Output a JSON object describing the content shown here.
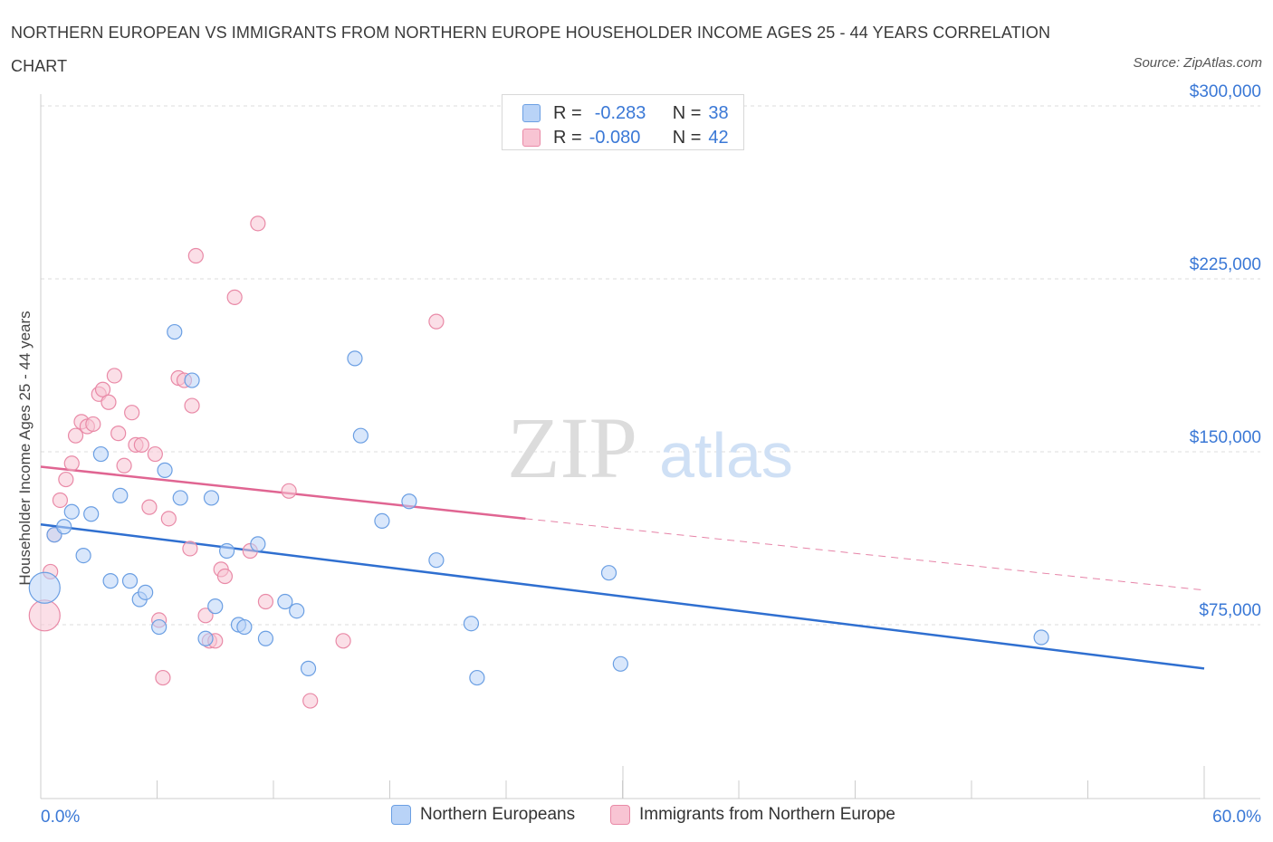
{
  "title": "NORTHERN EUROPEAN VS IMMIGRANTS FROM NORTHERN EUROPE HOUSEHOLDER INCOME AGES 25 - 44 YEARS CORRELATION CHART",
  "source": "Source: ZipAtlas.com",
  "watermark": {
    "zip": "ZIP",
    "atlas": "atlas"
  },
  "legend": {
    "rows": [
      {
        "r_label": "R =",
        "r_value": "-0.283",
        "n_label": "N =",
        "n_value": "38"
      },
      {
        "r_label": "R =",
        "r_value": "-0.080",
        "n_label": "N =",
        "n_value": "42"
      }
    ]
  },
  "bottom_legend": {
    "series1": "Northern Europeans",
    "series2": "Immigrants from Northern Europe"
  },
  "colors": {
    "blue_fill": "#b9d3f7",
    "blue_stroke": "#6b9fe3",
    "blue_line": "#2f6fd0",
    "pink_fill": "#f8c4d3",
    "pink_stroke": "#e98aa7",
    "pink_line": "#e06592",
    "grid": "#dddddd",
    "axis_text": "#3a78d6"
  },
  "chart_data": {
    "type": "scatter",
    "title": "NORTHERN EUROPEAN VS IMMIGRANTS FROM NORTHERN EUROPE HOUSEHOLDER INCOME AGES 25 - 44 YEARS CORRELATION CHART",
    "xlabel": "",
    "ylabel": "Householder Income Ages 25 - 44 years",
    "xlim": [
      0,
      60
    ],
    "ylim": [
      0,
      300000
    ],
    "x_tick_labels": [
      "0.0%",
      "60.0%"
    ],
    "y_ticks": [
      75000,
      150000,
      225000,
      300000
    ],
    "y_tick_labels": [
      "$75,000",
      "$150,000",
      "$225,000",
      "$300,000"
    ],
    "series": [
      {
        "name": "Northern Europeans",
        "color": "blue",
        "r": -0.283,
        "n": 38,
        "trend": {
          "x": [
            0,
            60
          ],
          "y": [
            118500,
            56000
          ],
          "dashed_x": null
        },
        "points": [
          {
            "x": 0.2,
            "y": 91000,
            "big": true
          },
          {
            "x": 0.7,
            "y": 114000
          },
          {
            "x": 1.2,
            "y": 117500
          },
          {
            "x": 1.6,
            "y": 124000
          },
          {
            "x": 2.2,
            "y": 105000
          },
          {
            "x": 2.6,
            "y": 123000
          },
          {
            "x": 3.1,
            "y": 149000
          },
          {
            "x": 3.6,
            "y": 94000
          },
          {
            "x": 4.1,
            "y": 131000
          },
          {
            "x": 4.6,
            "y": 94000
          },
          {
            "x": 5.1,
            "y": 86000
          },
          {
            "x": 5.4,
            "y": 89000
          },
          {
            "x": 6.1,
            "y": 74000
          },
          {
            "x": 6.4,
            "y": 142000
          },
          {
            "x": 6.9,
            "y": 202000
          },
          {
            "x": 7.2,
            "y": 130000
          },
          {
            "x": 7.8,
            "y": 181000
          },
          {
            "x": 8.5,
            "y": 69000
          },
          {
            "x": 8.8,
            "y": 130000
          },
          {
            "x": 9.0,
            "y": 83000
          },
          {
            "x": 9.6,
            "y": 107000
          },
          {
            "x": 10.2,
            "y": 75000
          },
          {
            "x": 10.5,
            "y": 74000
          },
          {
            "x": 11.2,
            "y": 110000
          },
          {
            "x": 11.6,
            "y": 69000
          },
          {
            "x": 12.6,
            "y": 85000
          },
          {
            "x": 13.2,
            "y": 81000
          },
          {
            "x": 13.8,
            "y": 56000
          },
          {
            "x": 16.2,
            "y": 190500
          },
          {
            "x": 16.5,
            "y": 157000
          },
          {
            "x": 17.6,
            "y": 120000
          },
          {
            "x": 19.0,
            "y": 128500
          },
          {
            "x": 20.4,
            "y": 103000
          },
          {
            "x": 22.2,
            "y": 75500
          },
          {
            "x": 22.5,
            "y": 52000
          },
          {
            "x": 29.3,
            "y": 97500
          },
          {
            "x": 29.9,
            "y": 58000
          },
          {
            "x": 51.6,
            "y": 69500
          }
        ]
      },
      {
        "name": "Immigrants from Northern Europe",
        "color": "pink",
        "r": -0.08,
        "n": 42,
        "trend": {
          "x": [
            0,
            25
          ],
          "y": [
            143500,
            121000
          ],
          "dashed_to_x": 60,
          "dashed_to_y": 90000
        },
        "points": [
          {
            "x": 0.2,
            "y": 79000,
            "big": true
          },
          {
            "x": 0.5,
            "y": 98000
          },
          {
            "x": 0.7,
            "y": 114000
          },
          {
            "x": 1.0,
            "y": 129000
          },
          {
            "x": 1.3,
            "y": 138000
          },
          {
            "x": 1.6,
            "y": 145000
          },
          {
            "x": 1.8,
            "y": 157000
          },
          {
            "x": 2.1,
            "y": 163000
          },
          {
            "x": 2.4,
            "y": 161000
          },
          {
            "x": 2.7,
            "y": 162000
          },
          {
            "x": 3.0,
            "y": 175000
          },
          {
            "x": 3.2,
            "y": 177000
          },
          {
            "x": 3.5,
            "y": 171500
          },
          {
            "x": 3.8,
            "y": 183000
          },
          {
            "x": 4.0,
            "y": 158000
          },
          {
            "x": 4.3,
            "y": 144000
          },
          {
            "x": 4.7,
            "y": 167000
          },
          {
            "x": 4.9,
            "y": 153000
          },
          {
            "x": 5.2,
            "y": 153000
          },
          {
            "x": 5.6,
            "y": 126000
          },
          {
            "x": 5.9,
            "y": 149000
          },
          {
            "x": 6.1,
            "y": 77000
          },
          {
            "x": 6.3,
            "y": 52000
          },
          {
            "x": 6.6,
            "y": 121000
          },
          {
            "x": 7.1,
            "y": 182000
          },
          {
            "x": 7.4,
            "y": 181000
          },
          {
            "x": 7.7,
            "y": 108000
          },
          {
            "x": 7.8,
            "y": 170000
          },
          {
            "x": 8.0,
            "y": 235000
          },
          {
            "x": 8.5,
            "y": 79000
          },
          {
            "x": 8.7,
            "y": 68000
          },
          {
            "x": 9.0,
            "y": 68000
          },
          {
            "x": 9.3,
            "y": 99000
          },
          {
            "x": 9.5,
            "y": 96000
          },
          {
            "x": 10.0,
            "y": 217000
          },
          {
            "x": 10.8,
            "y": 107000
          },
          {
            "x": 11.2,
            "y": 249000
          },
          {
            "x": 11.6,
            "y": 85000
          },
          {
            "x": 12.8,
            "y": 133000
          },
          {
            "x": 13.9,
            "y": 42000
          },
          {
            "x": 15.6,
            "y": 68000
          },
          {
            "x": 20.4,
            "y": 206500
          }
        ]
      }
    ]
  }
}
